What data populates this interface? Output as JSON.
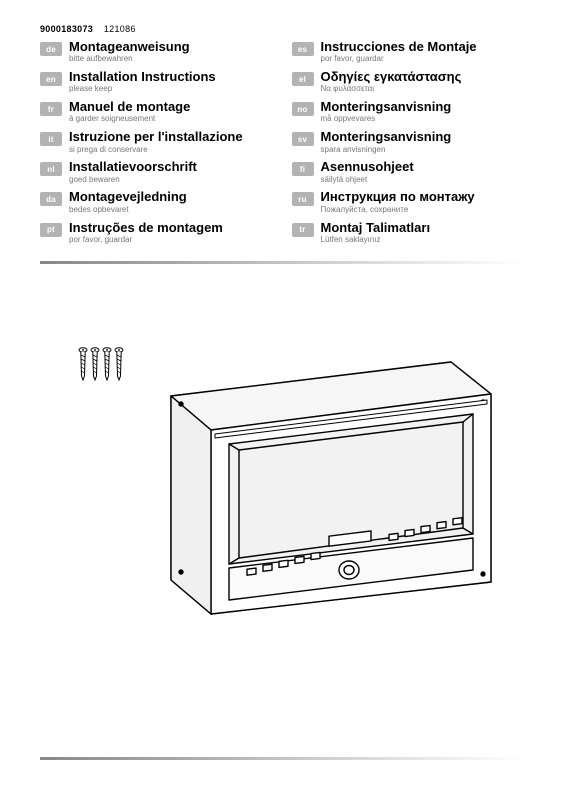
{
  "header": {
    "id1": "9000183073",
    "id2": "121086"
  },
  "languages": {
    "left": [
      {
        "code": "de",
        "title": "Montageanweisung",
        "sub": "bitte aufbewahren"
      },
      {
        "code": "en",
        "title": "Installation Instructions",
        "sub": "please keep"
      },
      {
        "code": "fr",
        "title": "Manuel de montage",
        "sub": "à garder soigneusement"
      },
      {
        "code": "it",
        "title": "Istruzione per l'installazione",
        "sub": "si prega di conservare"
      },
      {
        "code": "nl",
        "title": "Installatievoorschrift",
        "sub": "goed bewaren"
      },
      {
        "code": "da",
        "title": "Montagevejledning",
        "sub": "bedes opbevaret"
      },
      {
        "code": "pt",
        "title": "Instruções de montagem",
        "sub": "por favor, guardar"
      }
    ],
    "right": [
      {
        "code": "es",
        "title": "Instrucciones de Montaje",
        "sub": "por favor, guardar"
      },
      {
        "code": "el",
        "title": "Οδηγίες εγκατάστασης",
        "sub": "Να φυλάσσεται"
      },
      {
        "code": "no",
        "title": "Monteringsanvisning",
        "sub": "må oppvevares"
      },
      {
        "code": "sv",
        "title": "Monteringsanvisning",
        "sub": "spara anvisningen"
      },
      {
        "code": "fi",
        "title": "Asennusohjeet",
        "sub": "säilytä ohjeet"
      },
      {
        "code": "ru",
        "title": "Инструкция по монтажу",
        "sub": "Пожалуйста, сохраните"
      },
      {
        "code": "tr",
        "title": "Montaj Talimatları",
        "sub": "Lütfen saklayınız"
      }
    ]
  },
  "illustration": {
    "screw_count": 4,
    "stroke": "#000000",
    "stroke_width": 1.4,
    "fill_shade": "#f0f0f0",
    "fill_light": "#ffffff",
    "fill_dark": "#dcdcdc"
  }
}
